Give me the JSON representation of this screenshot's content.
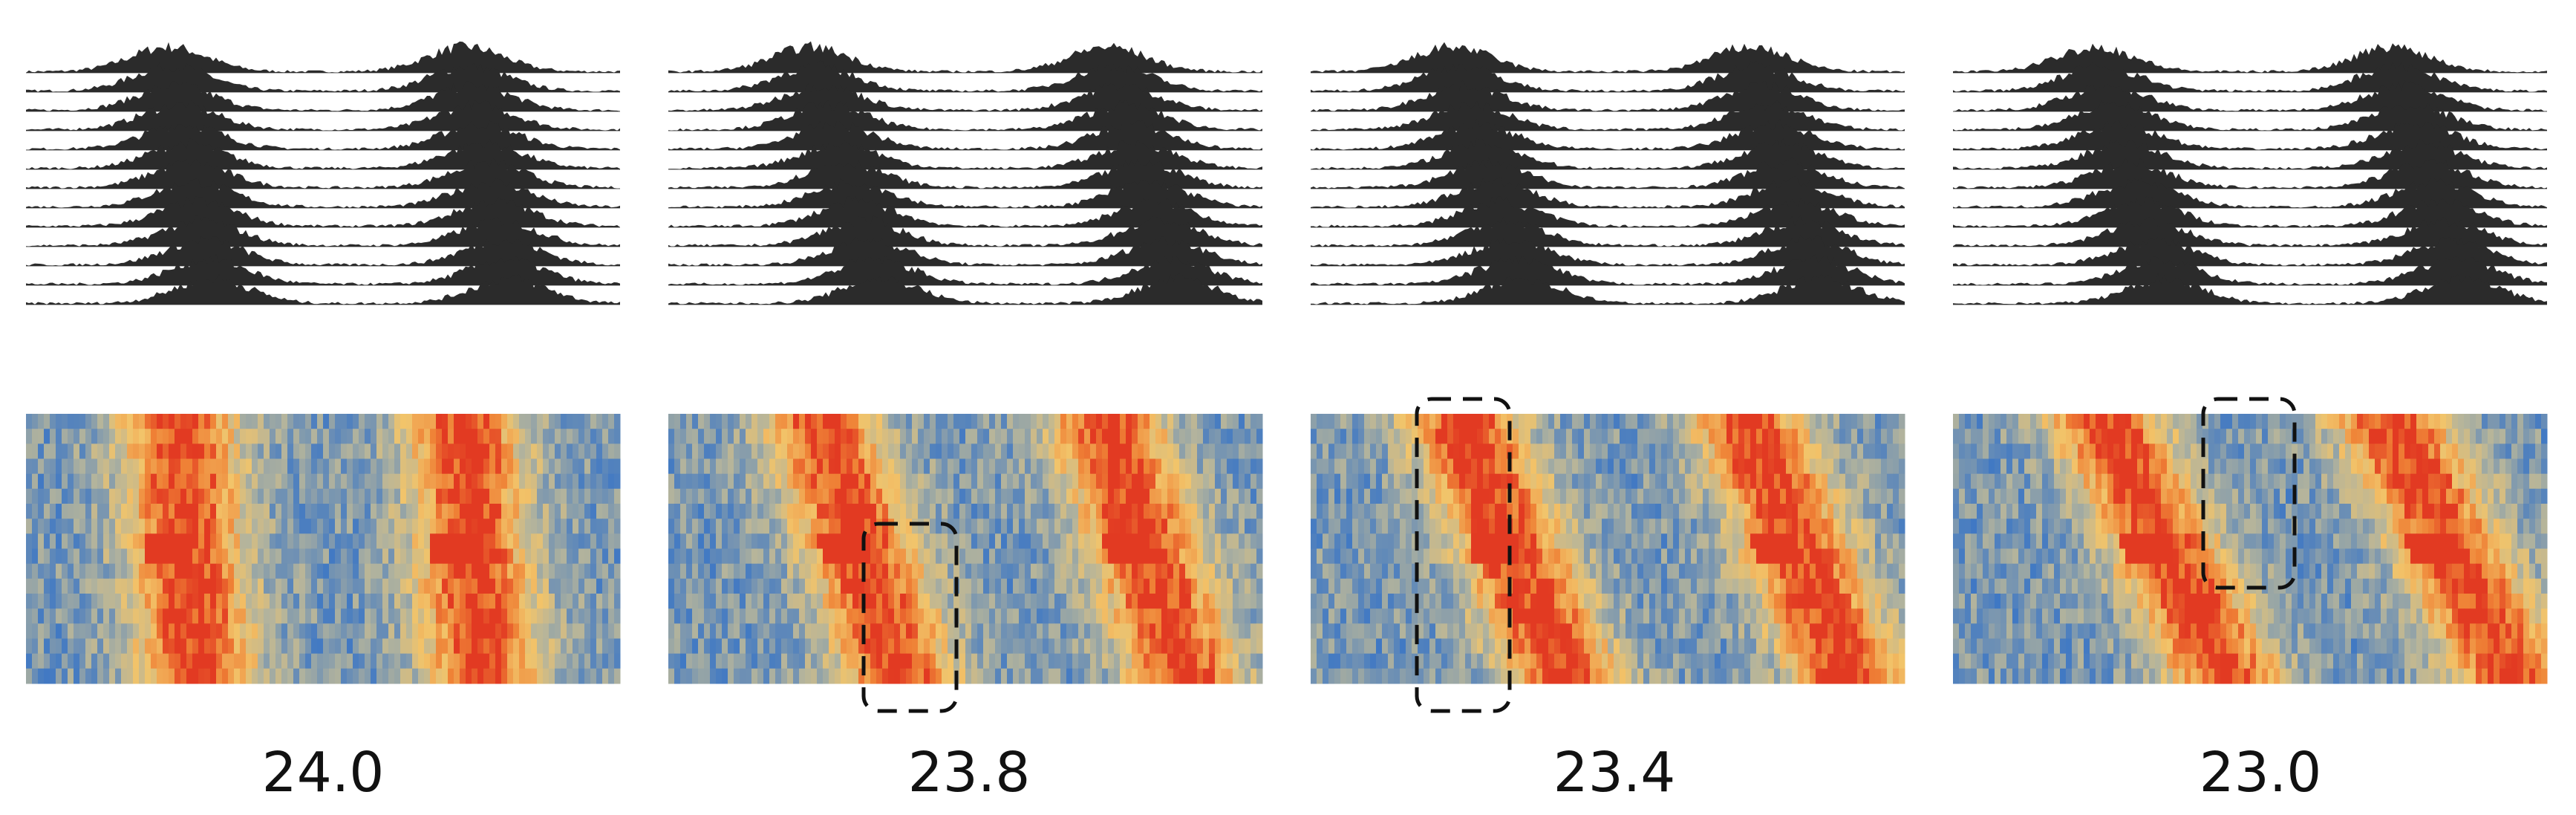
{
  "panels": [
    {
      "label": "24.0",
      "box": null
    },
    {
      "label": "23.8",
      "box": "lower-middle"
    },
    {
      "label": "23.4",
      "box": "left-full"
    },
    {
      "label": "23.0",
      "box": "upper-middle"
    }
  ],
  "colors": {
    "activity": "#2b2b2b",
    "baseline": "#9a9a9a",
    "heatmap_low": "#3f78c4",
    "heatmap_mid": "#b4b49c",
    "heatmap_yellow": "#f2c46a",
    "heatmap_orange": "#ef8236",
    "heatmap_high": "#e23a22",
    "box_stroke": "#111111"
  }
}
